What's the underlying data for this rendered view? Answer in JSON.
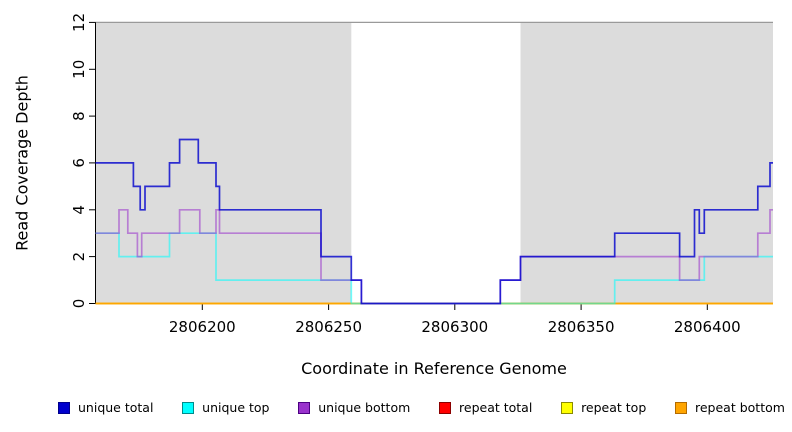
{
  "chart_data": {
    "type": "line",
    "subtype": "step-post coverage plot",
    "title": "",
    "xlabel": "Coordinate in Reference Genome",
    "ylabel": "Read Coverage Depth",
    "xlim": [
      2806157.7,
      2806426.0
    ],
    "ylim": [
      0,
      12
    ],
    "x_ticks": [
      2806200,
      2806250,
      2806300,
      2806350,
      2806400
    ],
    "y_ticks": [
      0,
      2,
      4,
      6,
      8,
      10,
      12
    ],
    "grid": false,
    "legend_position": "bottom",
    "plot_background": "#ffffff",
    "shaded_regions": [
      {
        "start": 2806157.7,
        "end": 2806259.0,
        "color": "#dcdcdc"
      },
      {
        "start": 2806326.0,
        "end": 2806426.0,
        "color": "#dcdcdc"
      }
    ],
    "top_border_color": "#9a9a9a",
    "series": [
      {
        "name": "repeat total",
        "color": "#ff0000",
        "opacity": 0.7,
        "points": [
          [
            2806157.7,
            0
          ]
        ]
      },
      {
        "name": "repeat top",
        "color": "#ffff00",
        "opacity": 0.7,
        "points": [
          [
            2806157.7,
            0
          ]
        ]
      },
      {
        "name": "repeat bottom",
        "color": "#ffa500",
        "opacity": 0.9,
        "points": [
          [
            2806157.7,
            0
          ]
        ]
      },
      {
        "name": "unique top",
        "color": "#00ffff",
        "opacity": 0.55,
        "points": [
          [
            2806157.7,
            3
          ],
          [
            2806167,
            2
          ],
          [
            2806187,
            3
          ],
          [
            2806205.4,
            1
          ],
          [
            2806259,
            0
          ],
          [
            2806363.3,
            1
          ],
          [
            2806398.8,
            2
          ]
        ]
      },
      {
        "name": "unique bottom",
        "color": "#9932cc",
        "opacity": 0.55,
        "points": [
          [
            2806157.7,
            3
          ],
          [
            2806167,
            4
          ],
          [
            2806170.5,
            3
          ],
          [
            2806174.3,
            2
          ],
          [
            2806176,
            3
          ],
          [
            2806191,
            4
          ],
          [
            2806199,
            3
          ],
          [
            2806205.4,
            4
          ],
          [
            2806206.8,
            3
          ],
          [
            2806247,
            1
          ],
          [
            2806263,
            0
          ],
          [
            2806318,
            1
          ],
          [
            2806326,
            2
          ],
          [
            2806389,
            1
          ],
          [
            2806396.8,
            2
          ],
          [
            2806420,
            3
          ],
          [
            2806424.8,
            4
          ]
        ]
      },
      {
        "name": "unique total",
        "color": "#0000cd",
        "opacity": 0.8,
        "points": [
          [
            2806157.7,
            6
          ],
          [
            2806172.7,
            5
          ],
          [
            2806175.4,
            4
          ],
          [
            2806177.3,
            5
          ],
          [
            2806187,
            6
          ],
          [
            2806191,
            7
          ],
          [
            2806198.4,
            6
          ],
          [
            2806205.4,
            5
          ],
          [
            2806206.8,
            4
          ],
          [
            2806247,
            2
          ],
          [
            2806259,
            1
          ],
          [
            2806263,
            0
          ],
          [
            2806318,
            1
          ],
          [
            2806326,
            2
          ],
          [
            2806363.3,
            3
          ],
          [
            2806389,
            2
          ],
          [
            2806394.9,
            4
          ],
          [
            2806396.8,
            3
          ],
          [
            2806398.8,
            4
          ],
          [
            2806420,
            5
          ],
          [
            2806424.8,
            6
          ]
        ]
      }
    ]
  },
  "legend": {
    "items": [
      {
        "label": "unique total",
        "fill": "#0000cd",
        "edge": "#00008b"
      },
      {
        "label": "unique top",
        "fill": "#00ffff",
        "edge": "#008b8b"
      },
      {
        "label": "unique bottom",
        "fill": "#9932cc",
        "edge": "#4b0082"
      },
      {
        "label": "repeat total",
        "fill": "#ff0000",
        "edge": "#8b0000"
      },
      {
        "label": "repeat top",
        "fill": "#ffff00",
        "edge": "#8b8b00"
      },
      {
        "label": "repeat bottom",
        "fill": "#ffa500",
        "edge": "#b36b00"
      }
    ]
  }
}
